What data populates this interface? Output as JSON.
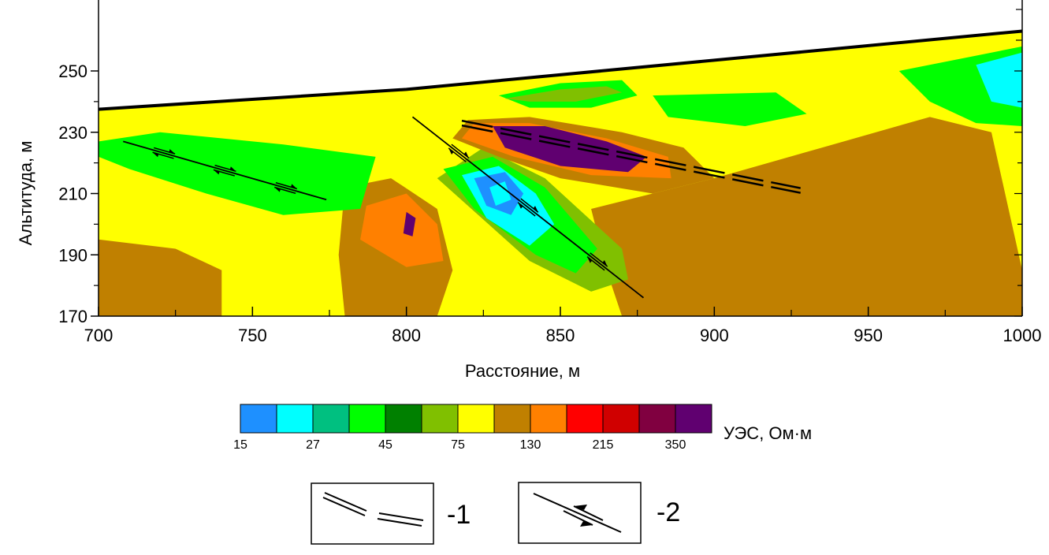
{
  "chart_data": {
    "type": "heatmap",
    "title": "",
    "xlabel": "Расстояние, м",
    "ylabel": "Альтитуда, м",
    "xlim": [
      700,
      1000
    ],
    "ylim": [
      170,
      250
    ],
    "x_ticks": [
      700,
      750,
      800,
      850,
      900,
      950,
      1000
    ],
    "x_tick_labels": [
      "700",
      "750",
      "800",
      "850",
      "900",
      "950",
      "1000"
    ],
    "y_ticks": [
      170,
      190,
      210,
      230,
      250
    ],
    "y_tick_labels": [
      "170",
      "190",
      "210",
      "230",
      "250"
    ],
    "surface_profile": [
      [
        700,
        237.5
      ],
      [
        800,
        244
      ],
      [
        1000,
        263
      ]
    ],
    "colorbar": {
      "title": "УЭС, Ом·м",
      "colors": [
        "#1e90ff",
        "#00ffff",
        "#00c080",
        "#00ff00",
        "#008000",
        "#80c000",
        "#ffff00",
        "#c08000",
        "#ff8000",
        "#ff0000",
        "#d00000",
        "#800040",
        "#600070"
      ],
      "tick_labels": [
        "15",
        "27",
        "45",
        "75",
        "130",
        "215",
        "350"
      ]
    },
    "zones": [
      {
        "class": "130",
        "points": [
          [
            700,
            195
          ],
          [
            725,
            192
          ],
          [
            740,
            185
          ],
          [
            740,
            170
          ],
          [
            700,
            170
          ]
        ]
      },
      {
        "class": "130",
        "points": [
          [
            780,
            212
          ],
          [
            795,
            215
          ],
          [
            810,
            205
          ],
          [
            815,
            185
          ],
          [
            810,
            170
          ],
          [
            780,
            170
          ],
          [
            778,
            190
          ]
        ]
      },
      {
        "class": "130",
        "points": [
          [
            860,
            205
          ],
          [
            900,
            215
          ],
          [
            935,
            225
          ],
          [
            970,
            235
          ],
          [
            990,
            230
          ],
          [
            1000,
            185
          ],
          [
            1000,
            170
          ],
          [
            870,
            170
          ],
          [
            865,
            185
          ]
        ]
      },
      {
        "class": "215",
        "points": [
          [
            787,
            206
          ],
          [
            800,
            210
          ],
          [
            810,
            200
          ],
          [
            812,
            188
          ],
          [
            800,
            186
          ],
          [
            785,
            195
          ]
        ]
      },
      {
        "class": "350",
        "points": [
          [
            800,
            204
          ],
          [
            803,
            202
          ],
          [
            802,
            196
          ],
          [
            799,
            197
          ]
        ]
      },
      {
        "class": "75",
        "points": [
          [
            810,
            215
          ],
          [
            825,
            225
          ],
          [
            845,
            215
          ],
          [
            870,
            192
          ],
          [
            872,
            182
          ],
          [
            860,
            178
          ],
          [
            840,
            188
          ]
        ]
      },
      {
        "class": "45",
        "points": [
          [
            812,
            218
          ],
          [
            828,
            222
          ],
          [
            845,
            212
          ],
          [
            862,
            192
          ],
          [
            855,
            184
          ],
          [
            842,
            190
          ],
          [
            822,
            205
          ]
        ]
      },
      {
        "class": "45",
        "points": [
          [
            700,
            227
          ],
          [
            720,
            230
          ],
          [
            760,
            226
          ],
          [
            790,
            222
          ],
          [
            785,
            205
          ],
          [
            760,
            203
          ],
          [
            735,
            210
          ],
          [
            710,
            218
          ],
          [
            700,
            222
          ]
        ]
      },
      {
        "class": "27",
        "points": [
          [
            818,
            216
          ],
          [
            830,
            219
          ],
          [
            842,
            210
          ],
          [
            848,
            200
          ],
          [
            840,
            193
          ],
          [
            826,
            202
          ]
        ]
      },
      {
        "class": "15",
        "points": [
          [
            822,
            215
          ],
          [
            832,
            217
          ],
          [
            838,
            210
          ],
          [
            834,
            203
          ],
          [
            826,
            206
          ]
        ]
      },
      {
        "class": "27",
        "points": [
          [
            827,
            212
          ],
          [
            832,
            214
          ],
          [
            834,
            208
          ],
          [
            829,
            206
          ]
        ]
      },
      {
        "class": "45",
        "points": [
          [
            745,
            220
          ],
          [
            760,
            222
          ],
          [
            772,
            215
          ],
          [
            768,
            208
          ],
          [
            752,
            208
          ]
        ]
      },
      {
        "class": "130",
        "points": [
          [
            820,
            234
          ],
          [
            840,
            235
          ],
          [
            870,
            230
          ],
          [
            890,
            225
          ],
          [
            900,
            215
          ],
          [
            880,
            210
          ],
          [
            850,
            215
          ],
          [
            830,
            222
          ],
          [
            815,
            228
          ]
        ]
      },
      {
        "class": "215",
        "points": [
          [
            822,
            233
          ],
          [
            840,
            233
          ],
          [
            865,
            228
          ],
          [
            885,
            222
          ],
          [
            886,
            215
          ],
          [
            860,
            216
          ],
          [
            835,
            222
          ],
          [
            818,
            228
          ]
        ]
      },
      {
        "class": "350",
        "points": [
          [
            828,
            232
          ],
          [
            845,
            232
          ],
          [
            865,
            227
          ],
          [
            878,
            222
          ],
          [
            872,
            217
          ],
          [
            850,
            219
          ],
          [
            832,
            225
          ]
        ]
      },
      {
        "class": "45",
        "points": [
          [
            830,
            242
          ],
          [
            850,
            246
          ],
          [
            870,
            247
          ],
          [
            875,
            242
          ],
          [
            860,
            238
          ],
          [
            840,
            238
          ]
        ]
      },
      {
        "class": "75",
        "points": [
          [
            832,
            241
          ],
          [
            850,
            244
          ],
          [
            865,
            245
          ],
          [
            870,
            243
          ],
          [
            855,
            240
          ],
          [
            840,
            240
          ]
        ]
      },
      {
        "class": "45",
        "points": [
          [
            880,
            242
          ],
          [
            920,
            243
          ],
          [
            930,
            236
          ],
          [
            910,
            232
          ],
          [
            885,
            235
          ]
        ]
      },
      {
        "class": "45",
        "points": [
          [
            960,
            250
          ],
          [
            985,
            255
          ],
          [
            1000,
            258
          ],
          [
            1000,
            232
          ],
          [
            985,
            233
          ],
          [
            970,
            240
          ]
        ]
      },
      {
        "class": "27",
        "points": [
          [
            985,
            252
          ],
          [
            1000,
            256
          ],
          [
            1000,
            238
          ],
          [
            990,
            240
          ]
        ]
      }
    ],
    "faults_type1": [
      {
        "points": [
          [
            818,
            233
          ],
          [
            928,
            211
          ]
        ]
      }
    ],
    "faults_type2": [
      {
        "points": [
          [
            708,
            227
          ],
          [
            774,
            208
          ]
        ]
      },
      {
        "points": [
          [
            802,
            235
          ],
          [
            877,
            176
          ]
        ]
      }
    ]
  },
  "legend": {
    "items": [
      {
        "label": "-1"
      },
      {
        "label": "-2"
      }
    ]
  }
}
